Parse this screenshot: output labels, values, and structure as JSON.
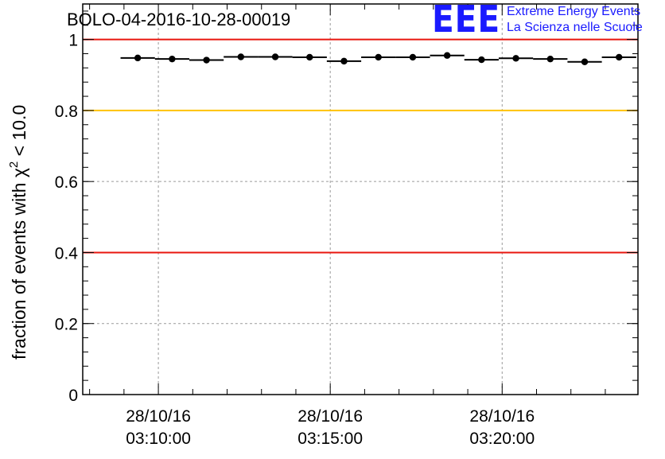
{
  "header": {
    "title": "BOLO-04-2016-10-28-00019",
    "logo": {
      "mark": "EEE",
      "line1": "Extreme Energy Events",
      "line2": "La Scienza nelle Scuole",
      "color": "#1a1aff"
    }
  },
  "chart_data": {
    "type": "scatter",
    "title": "BOLO-04-2016-10-28-00019",
    "ylabel_prefix": "fraction of events with ",
    "ylabel_symbol": "χ",
    "ylabel_power": "2",
    "ylabel_suffix": " < 10.0",
    "xlabel": "",
    "ylim": [
      0,
      1.1
    ],
    "xlim_minutes": [
      -2.2,
      13.95
    ],
    "bin_width_minutes": 1.0,
    "y_ticks": [
      {
        "value": 0,
        "label": "0"
      },
      {
        "value": 0.2,
        "label": "0.2"
      },
      {
        "value": 0.4,
        "label": "0.4"
      },
      {
        "value": 0.6,
        "label": "0.6"
      },
      {
        "value": 0.8,
        "label": "0.8"
      },
      {
        "value": 1.0,
        "label": "1"
      }
    ],
    "x_major_ticks": [
      {
        "minutes": 0,
        "date": "28/10/16",
        "time": "03:10:00"
      },
      {
        "minutes": 5,
        "date": "28/10/16",
        "time": "03:15:00"
      },
      {
        "minutes": 10,
        "date": "28/10/16",
        "time": "03:20:00"
      }
    ],
    "reference_lines": [
      {
        "value": 1.0,
        "color": "#e8160f"
      },
      {
        "value": 0.8,
        "color": "#ffc20a"
      },
      {
        "value": 0.4,
        "color": "#e8160f"
      }
    ],
    "grid": true,
    "series": [
      {
        "name": "fraction",
        "color": "#000000",
        "x_minutes": [
          -0.6,
          0.4,
          1.4,
          2.4,
          3.4,
          4.4,
          5.4,
          6.4,
          7.4,
          8.4,
          9.4,
          10.4,
          11.4,
          12.4,
          13.4
        ],
        "values": [
          0.948,
          0.945,
          0.942,
          0.951,
          0.951,
          0.95,
          0.939,
          0.95,
          0.95,
          0.955,
          0.943,
          0.947,
          0.945,
          0.937,
          0.95
        ]
      }
    ]
  }
}
